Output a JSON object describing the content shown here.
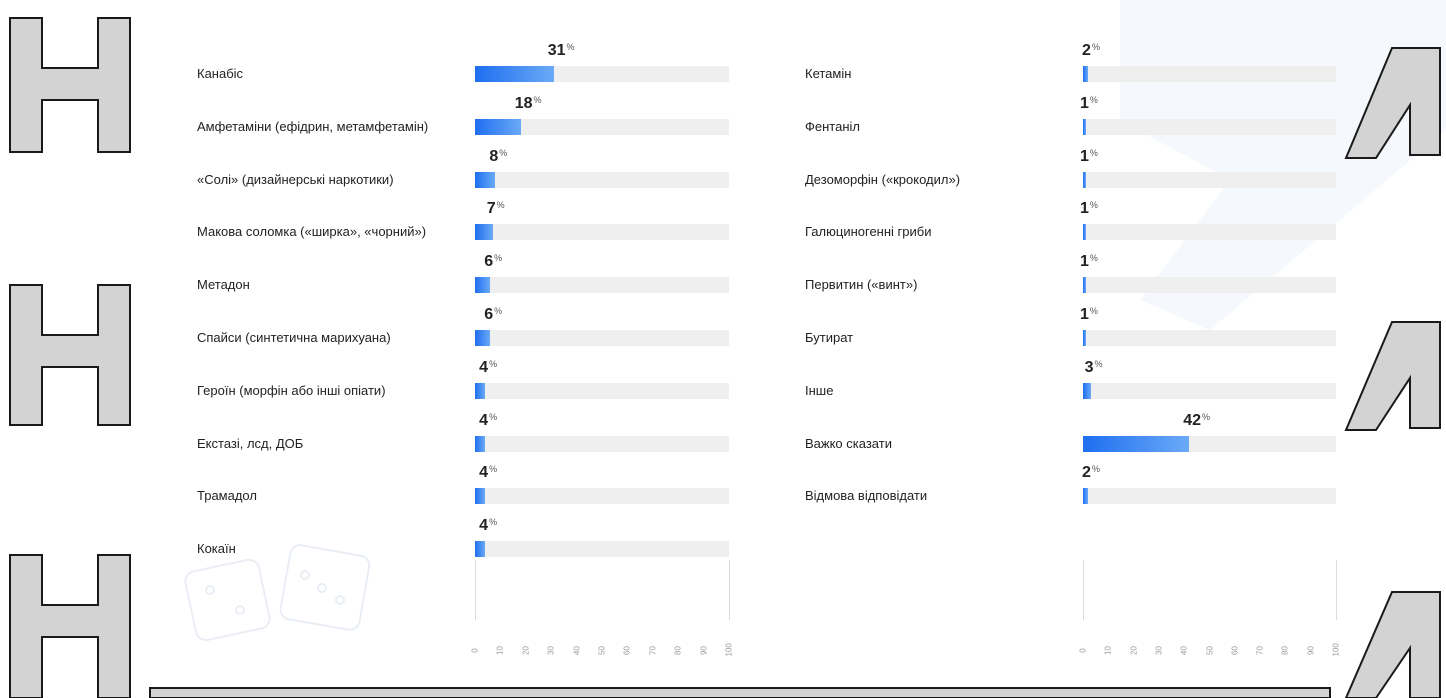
{
  "chart_data": [
    {
      "type": "bar",
      "orientation": "horizontal",
      "categories": [
        "Канабіс",
        "Амфетаміни (ефідрин, метамфетамін)",
        "«Солі» (дизайнерські наркотики)",
        "Макова соломка («ширка», «чорний»)",
        "Метадон",
        "Спайси (синтетична марихуана)",
        "Героїн (морфін або інші опіати)",
        "Екстазі, лсд, ДОБ",
        "Трамадол",
        "Кокаїн"
      ],
      "values": [
        31,
        18,
        8,
        7,
        6,
        6,
        4,
        4,
        4,
        4
      ],
      "value_suffix": "%",
      "xlim": [
        0,
        100
      ],
      "xticks": [
        "0",
        "10",
        "20",
        "30",
        "40",
        "50",
        "60",
        "70",
        "80",
        "90",
        "100"
      ]
    },
    {
      "type": "bar",
      "orientation": "horizontal",
      "categories": [
        "Кетамін",
        "Фентаніл",
        "Дезоморфін («крокодил»)",
        "Галюциногенні гриби",
        "Первитин («винт»)",
        "Бутират",
        "Інше",
        "Важко сказати",
        "Відмова відповідати"
      ],
      "values": [
        2,
        1,
        1,
        1,
        1,
        1,
        3,
        42,
        2
      ],
      "value_suffix": "%",
      "xlim": [
        0,
        100
      ],
      "xticks": [
        "0",
        "10",
        "20",
        "30",
        "40",
        "50",
        "60",
        "70",
        "80",
        "90",
        "100"
      ]
    }
  ],
  "style": {
    "bar_color_start": "#1f6ef0",
    "bar_color_end": "#6aaaf7",
    "track_color": "#efefef",
    "watermark_fill": "#d3d3d3",
    "watermark_stroke": "#1a1a1a"
  }
}
